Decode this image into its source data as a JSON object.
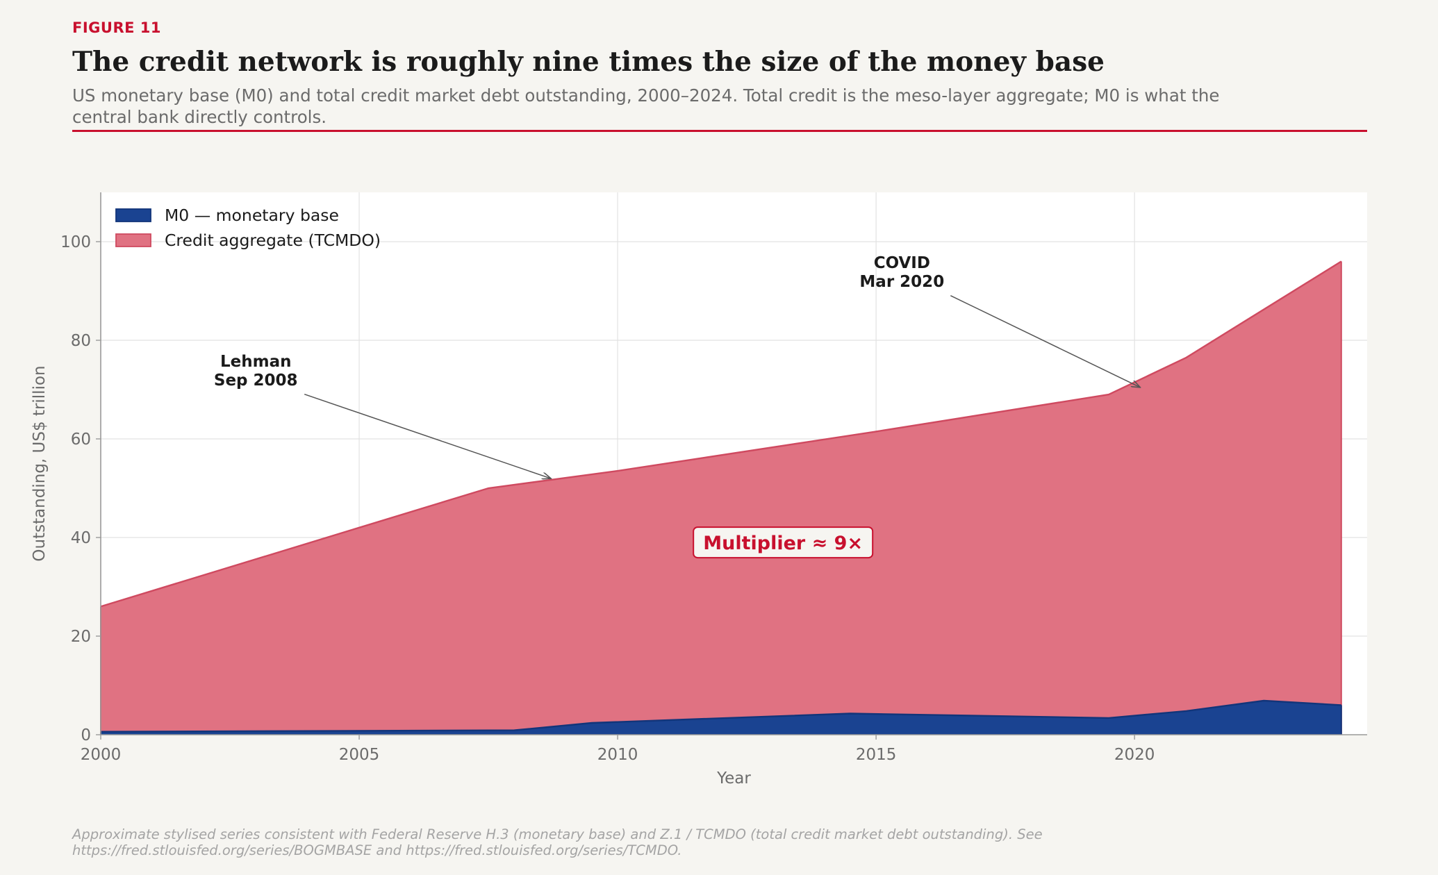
{
  "header": {
    "figure_label": "FIGURE 11",
    "title": "The credit network is roughly nine times the size of the money base",
    "subtitle": "US monetary base (M0) and total credit market debt outstanding, 2000–2024. Total credit is the meso-layer aggregate; M0 is what the central bank directly controls."
  },
  "footnote": "Approximate stylised series consistent with Federal Reserve H.3 (monetary base) and Z.1 / TCMDO (total credit market debt outstanding). See https://fred.stlouisfed.org/series/BOGMBASE and https://fred.stlouisfed.org/series/TCMDO.",
  "colors": {
    "accent": "#c8102e",
    "m0_fill": "#1a4391",
    "m0_line": "#12357a",
    "credit_fill": "#e07282",
    "credit_line": "#cf4a60",
    "background": "#f6f5f1",
    "plot_background": "#ffffff"
  },
  "chart_data": {
    "type": "area",
    "xlabel": "Year",
    "ylabel": "Outstanding, US$ trillion",
    "xlim": [
      2000,
      2024.5
    ],
    "ylim": [
      0,
      110
    ],
    "x_ticks": [
      2000,
      2005,
      2010,
      2015,
      2020
    ],
    "y_ticks": [
      0,
      20,
      40,
      60,
      80,
      100
    ],
    "grid": true,
    "stacked": false,
    "legend_position": "top-left",
    "series": [
      {
        "name": "M0 — monetary base",
        "color": "#1a4391",
        "x": [
          2000,
          2008,
          2009.5,
          2014.5,
          2019.5,
          2021,
          2022.5,
          2024
        ],
        "y": [
          0.6,
          0.9,
          2.4,
          4.3,
          3.4,
          4.8,
          6.9,
          6.0
        ]
      },
      {
        "name": "Credit aggregate (TCMDO)",
        "color": "#e07282",
        "x": [
          2000,
          2005,
          2007.5,
          2010,
          2015,
          2019.5,
          2021,
          2024
        ],
        "y": [
          26,
          42,
          50,
          53.5,
          61.5,
          69,
          76.5,
          96
        ]
      }
    ],
    "annotations": [
      {
        "id": "lehman",
        "text_lines": [
          "Lehman",
          "Sep 2008"
        ],
        "text_x": 2003,
        "text_y": 73,
        "arrow_x": 2008.7,
        "arrow_y": 52
      },
      {
        "id": "covid",
        "text_lines": [
          "COVID",
          "Mar 2020"
        ],
        "text_x": 2015.5,
        "text_y": 93,
        "arrow_x": 2020.1,
        "arrow_y": 70.5
      }
    ],
    "callout": {
      "text": "Multiplier ≈ 9×",
      "x": 2013.2,
      "y": 39
    }
  }
}
